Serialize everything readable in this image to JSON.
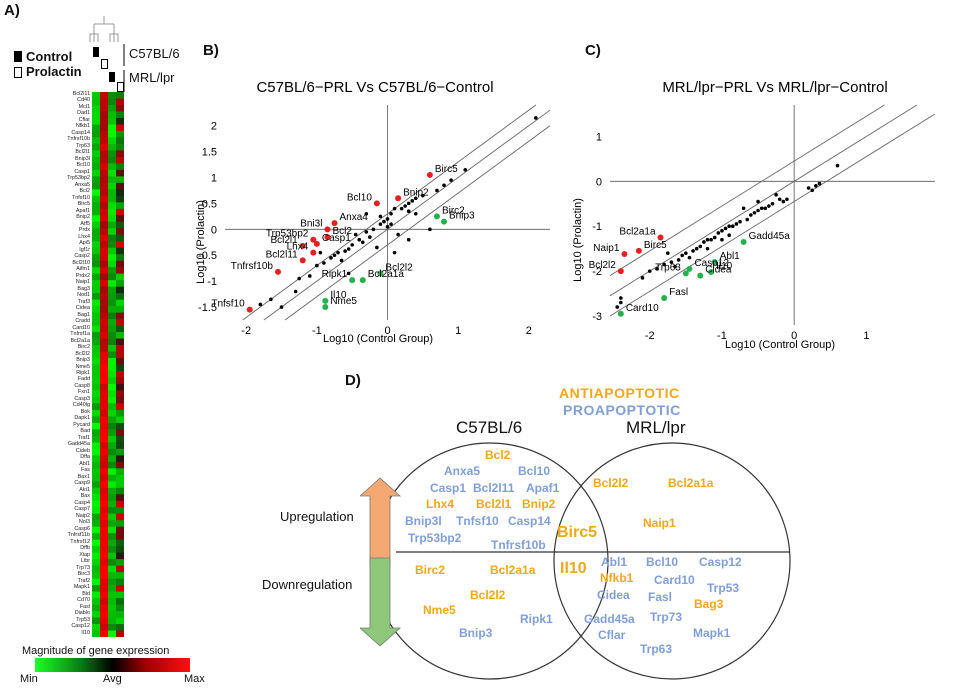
{
  "panel_a": {
    "label": "A)",
    "legend_control": "Control",
    "legend_prolactin": "Prolactin",
    "strain1": "C57BL/6",
    "strain2": "MRL/lpr",
    "genes": [
      "Bcl2l11",
      "Cd40",
      "Mcl1",
      "Dad1",
      "Cflar",
      "Nfkb1",
      "Casp14",
      "Tnfrsf10b",
      "Trp63",
      "Bcl2l1",
      "Bnip3l",
      "Bcl10",
      "Casp1",
      "Trp53bp2",
      "Anxa5",
      "Bcl2",
      "Tnfsf10",
      "Birc5",
      "Apaf1",
      "Bnip2",
      "Atf5",
      "Prdx",
      "Lhx4",
      "Api5",
      "Igf1r",
      "Casp2",
      "Bcl2l10",
      "Aifm1",
      "Prdx2",
      "Naip1",
      "Bag3",
      "Nod1",
      "Traf3",
      "Cidea",
      "Bag1",
      "Cradd",
      "Card10",
      "Tnfrsf1a",
      "Bcl2a1a",
      "Birc2",
      "Bcl2l2",
      "Bnip3",
      "Nme5",
      "Ripk1",
      "Fadd",
      "Casp8",
      "Fxn1",
      "Casp3",
      "Cd40lg",
      "Bok",
      "Dapk1",
      "Pycard",
      "Bad",
      "Traf1",
      "Gadd45a",
      "Cideb",
      "Dffa",
      "Abl1",
      "Fas",
      "Bax1",
      "Casp9",
      "Akt1",
      "Bax",
      "Casp4",
      "Casp7",
      "Naip2",
      "Nol3",
      "Casp6",
      "Tnfrsf11b",
      "Tnfrsf12",
      "Dffb",
      "Xiap",
      "Ltbr",
      "Trp73",
      "Birc3",
      "Traf2",
      "Mapk1",
      "Bid",
      "Cd70",
      "Fasl",
      "Diablo",
      "Trp53",
      "Casp12",
      "Il10"
    ],
    "scale_title": "Magnitude of gene expression",
    "scale_min": "Min",
    "scale_avg": "Avg",
    "scale_max": "Max"
  },
  "panel_b": {
    "label": "B)",
    "chart_data": {
      "type": "scatter",
      "title": "C57BL/6−PRL Vs C57BL/6−Control",
      "xlabel": "Log10 (Control Group)",
      "ylabel": "Log10 (Prolactin)",
      "xlim": [
        -2.3,
        2.3
      ],
      "ylim": [
        -1.75,
        2.4
      ],
      "xticks": [
        -2,
        -1,
        0,
        1,
        2
      ],
      "yticks": [
        -1.5,
        -1,
        -0.5,
        0,
        0.5,
        1,
        1.5,
        2
      ],
      "xtick_labels": [
        "-2",
        "-1",
        "0",
        "1",
        "2"
      ],
      "ytick_labels": [
        "-1.5",
        "-1",
        "-0.5",
        "0",
        "0.5",
        "1",
        "1.5",
        "2"
      ],
      "diagonal_offsets": [
        0.3,
        0,
        -0.3
      ],
      "labeled_points": [
        {
          "gene": "Birc5",
          "x": 0.6,
          "y": 1.05,
          "color": "#e62020",
          "label": "Birc5",
          "ha": "start"
        },
        {
          "gene": "Bnip2",
          "x": 0.15,
          "y": 0.6,
          "color": "#e62020",
          "label": "Bnip2",
          "ha": "start"
        },
        {
          "gene": "Bcl10",
          "x": -0.15,
          "y": 0.5,
          "color": "#e62020",
          "label": "Bcl10",
          "ha": "end"
        },
        {
          "gene": "Anxa4",
          "x": -0.75,
          "y": 0.12,
          "color": "#e62020",
          "label": "Anxa4",
          "ha": "start"
        },
        {
          "gene": "Bni3l",
          "x": -0.85,
          "y": 0.0,
          "color": "#e62020",
          "label": "Bni3l",
          "ha": "end"
        },
        {
          "gene": "Bcl2",
          "x": -0.85,
          "y": -0.15,
          "color": "#e62020",
          "label": "Bcl2",
          "ha": "start"
        },
        {
          "gene": "Trp53bp2",
          "x": -1.05,
          "y": -0.2,
          "color": "#e62020",
          "label": "Trp53bp2",
          "ha": "end"
        },
        {
          "gene": "Casp1",
          "x": -1.0,
          "y": -0.28,
          "color": "#e62020",
          "label": "Casp1",
          "ha": "start"
        },
        {
          "gene": "Bcl2l1",
          "x": -1.2,
          "y": -0.32,
          "color": "#e62020",
          "label": "Bcl2l1",
          "ha": "end"
        },
        {
          "gene": "Lhx4",
          "x": -1.05,
          "y": -0.45,
          "color": "#e62020",
          "label": "Lhx4",
          "ha": "end"
        },
        {
          "gene": "Bcl2l11",
          "x": -1.2,
          "y": -0.6,
          "color": "#e62020",
          "label": "Bcl2l11",
          "ha": "end"
        },
        {
          "gene": "Tnfrsf10b",
          "x": -1.55,
          "y": -0.82,
          "color": "#e62020",
          "label": "Tnfrsf10b",
          "ha": "end"
        },
        {
          "gene": "Tnfsf10",
          "x": -1.95,
          "y": -1.55,
          "color": "#e62020",
          "label": "Tnfsf10",
          "ha": "end"
        },
        {
          "gene": "Birc2",
          "x": 0.7,
          "y": 0.25,
          "color": "#22b14c",
          "label": "Birc2",
          "ha": "start"
        },
        {
          "gene": "Bnip3",
          "x": 0.8,
          "y": 0.15,
          "color": "#22b14c",
          "label": "Bnip3",
          "ha": "start"
        },
        {
          "gene": "Bcl2l2",
          "x": -0.1,
          "y": -0.85,
          "color": "#22b14c",
          "label": "Bcl2l2",
          "ha": "start"
        },
        {
          "gene": "Bcl2a1a",
          "x": -0.35,
          "y": -0.98,
          "color": "#22b14c",
          "label": "Bcl2a1a",
          "ha": "start"
        },
        {
          "gene": "Ripk1",
          "x": -0.5,
          "y": -0.98,
          "color": "#22b14c",
          "label": "Ripk1",
          "ha": "end"
        },
        {
          "gene": "Il10",
          "x": -0.88,
          "y": -1.38,
          "color": "#22b14c",
          "label": "Il10",
          "ha": "start"
        },
        {
          "gene": "Nme5",
          "x": -0.88,
          "y": -1.5,
          "color": "#22b14c",
          "label": "Nme5",
          "ha": "start"
        }
      ],
      "other_points": [
        [
          2.1,
          2.15
        ],
        [
          1.1,
          1.15
        ],
        [
          0.9,
          0.95
        ],
        [
          0.8,
          0.85
        ],
        [
          0.7,
          0.75
        ],
        [
          0.5,
          0.65
        ],
        [
          0.4,
          0.6
        ],
        [
          0.35,
          0.55
        ],
        [
          0.3,
          0.5
        ],
        [
          0.25,
          0.45
        ],
        [
          0.2,
          0.4
        ],
        [
          0.1,
          0.4
        ],
        [
          0.05,
          0.3
        ],
        [
          0.0,
          0.2
        ],
        [
          -0.05,
          0.15
        ],
        [
          -0.1,
          0.1
        ],
        [
          0.0,
          0.05
        ],
        [
          0.05,
          0.1
        ],
        [
          0.3,
          0.35
        ],
        [
          0.4,
          0.3
        ],
        [
          -0.2,
          0.0
        ],
        [
          -0.3,
          -0.05
        ],
        [
          -0.25,
          -0.15
        ],
        [
          -0.4,
          -0.2
        ],
        [
          -0.5,
          -0.3
        ],
        [
          -0.55,
          -0.38
        ],
        [
          -0.6,
          -0.42
        ],
        [
          -0.7,
          -0.45
        ],
        [
          -0.75,
          -0.5
        ],
        [
          -0.8,
          -0.55
        ],
        [
          -0.9,
          -0.65
        ],
        [
          -1.0,
          -0.7
        ],
        [
          -1.1,
          -0.9
        ],
        [
          -0.65,
          -0.6
        ],
        [
          -1.3,
          -1.2
        ],
        [
          -1.5,
          -1.5
        ],
        [
          -1.8,
          -1.45
        ],
        [
          -1.65,
          -1.35
        ],
        [
          -0.55,
          -0.85
        ],
        [
          0.1,
          -0.45
        ],
        [
          0.3,
          -0.2
        ],
        [
          0.6,
          0.0
        ],
        [
          0.15,
          -0.1
        ],
        [
          -0.35,
          -0.25
        ],
        [
          -0.15,
          -0.35
        ],
        [
          -0.45,
          -0.1
        ],
        [
          -0.95,
          -0.45
        ],
        [
          -1.25,
          -0.95
        ],
        [
          -0.3,
          0.3
        ],
        [
          -0.1,
          0.25
        ]
      ]
    }
  },
  "panel_c": {
    "label": "C)",
    "chart_data": {
      "type": "scatter",
      "title": "MRL/lpr−PRL Vs MRL/lpr−Control",
      "xlabel": "Log10 (Control Group)",
      "ylabel": "Log10 (Prolactin)",
      "xlim": [
        -2.55,
        1.95
      ],
      "ylim": [
        -3.2,
        1.7
      ],
      "xticks": [
        -2,
        -1,
        0,
        1
      ],
      "yticks": [
        -3,
        -2,
        -1,
        0,
        1
      ],
      "xtick_labels": [
        "-2",
        "-1",
        "0",
        "1"
      ],
      "ytick_labels": [
        "-3",
        "-2",
        "-1",
        "0",
        "1"
      ],
      "diagonal_offsets": [
        0.45,
        0,
        -0.45
      ],
      "labeled_points": [
        {
          "gene": "Bcl2a1a",
          "x": -1.85,
          "y": -1.25,
          "color": "#e62020",
          "label": "Bcl2a1a",
          "ha": "end"
        },
        {
          "gene": "Birc5",
          "x": -2.15,
          "y": -1.55,
          "color": "#e62020",
          "label": "Birc5",
          "ha": "start"
        },
        {
          "gene": "Naip1",
          "x": -2.35,
          "y": -1.62,
          "color": "#e62020",
          "label": "Naip1",
          "ha": "end"
        },
        {
          "gene": "Bcl2l2",
          "x": -2.4,
          "y": -2.0,
          "color": "#e62020",
          "label": "Bcl2l2",
          "ha": "end"
        },
        {
          "gene": "Gadd45a",
          "x": -0.7,
          "y": -1.35,
          "color": "#22b14c",
          "label": "Gadd45a",
          "ha": "start"
        },
        {
          "gene": "Abl1",
          "x": -1.1,
          "y": -1.8,
          "color": "#22b14c",
          "label": "Abl1",
          "ha": "start"
        },
        {
          "gene": "Casp12",
          "x": -1.45,
          "y": -1.95,
          "color": "#22b14c",
          "label": "Casp12",
          "ha": "start"
        },
        {
          "gene": "Il10",
          "x": -1.15,
          "y": -2.02,
          "color": "#22b14c",
          "label": "Il10",
          "ha": "start"
        },
        {
          "gene": "Cidea",
          "x": -1.3,
          "y": -2.1,
          "color": "#22b14c",
          "label": "Cidea",
          "ha": "start"
        },
        {
          "gene": "Trp63",
          "x": -1.5,
          "y": -2.05,
          "color": "#22b14c",
          "label": "Trp63",
          "ha": "end"
        },
        {
          "gene": "Fasl",
          "x": -1.8,
          "y": -2.6,
          "color": "#22b14c",
          "label": "Fasl",
          "ha": "start"
        },
        {
          "gene": "Card10",
          "x": -2.4,
          "y": -2.95,
          "color": "#22b14c",
          "label": "Card10",
          "ha": "start"
        }
      ],
      "other_points": [
        [
          0.6,
          0.35
        ],
        [
          0.35,
          -0.05
        ],
        [
          0.3,
          -0.1
        ],
        [
          0.25,
          -0.2
        ],
        [
          0.2,
          -0.15
        ],
        [
          -0.1,
          -0.4
        ],
        [
          -0.15,
          -0.45
        ],
        [
          -0.2,
          -0.4
        ],
        [
          -0.3,
          -0.5
        ],
        [
          -0.35,
          -0.55
        ],
        [
          -0.4,
          -0.6
        ],
        [
          -0.45,
          -0.6
        ],
        [
          -0.5,
          -0.65
        ],
        [
          -0.55,
          -0.7
        ],
        [
          -0.6,
          -0.75
        ],
        [
          -0.65,
          -0.85
        ],
        [
          -0.75,
          -0.9
        ],
        [
          -0.8,
          -0.95
        ],
        [
          -0.85,
          -1.0
        ],
        [
          -0.9,
          -1.0
        ],
        [
          -0.95,
          -1.05
        ],
        [
          -1.0,
          -1.1
        ],
        [
          -1.05,
          -1.15
        ],
        [
          -1.1,
          -1.25
        ],
        [
          -1.15,
          -1.3
        ],
        [
          -1.2,
          -1.3
        ],
        [
          -1.25,
          -1.35
        ],
        [
          -1.3,
          -1.45
        ],
        [
          -1.35,
          -1.5
        ],
        [
          -1.4,
          -1.55
        ],
        [
          -1.5,
          -1.6
        ],
        [
          -1.55,
          -1.65
        ],
        [
          -1.6,
          -1.75
        ],
        [
          -1.7,
          -1.8
        ],
        [
          -1.8,
          -1.85
        ],
        [
          -1.9,
          -1.95
        ],
        [
          -2.0,
          -2.0
        ],
        [
          -2.1,
          -2.15
        ],
        [
          -1.2,
          -1.5
        ],
        [
          -1.0,
          -1.3
        ],
        [
          -0.9,
          -1.2
        ],
        [
          -1.45,
          -1.7
        ],
        [
          -1.65,
          -1.9
        ],
        [
          -2.4,
          -2.6
        ],
        [
          -2.4,
          -2.7
        ],
        [
          -2.45,
          -2.8
        ],
        [
          -0.7,
          -0.6
        ],
        [
          -0.5,
          -0.45
        ],
        [
          -0.25,
          -0.3
        ],
        [
          -1.75,
          -1.6
        ]
      ]
    }
  },
  "panel_d": {
    "label": "D)",
    "legend_anti": "ANTIAPOPTOTIC",
    "legend_pro": "PROAPOPTOTIC",
    "set_left": "C57BL/6",
    "set_right": "MRL/lpr",
    "upregulation": "Upregulation",
    "downregulation": "Downregulation",
    "intersection_up": "Birc5",
    "intersection_down": "Il10",
    "left_up": [
      {
        "text": "Bcl2",
        "type": "anti"
      },
      {
        "text": "Anxa5",
        "type": "pro"
      },
      {
        "text": "Bcl10",
        "type": "pro"
      },
      {
        "text": "Casp1",
        "type": "pro"
      },
      {
        "text": "Bcl2l11",
        "type": "pro"
      },
      {
        "text": "Apaf1",
        "type": "pro"
      },
      {
        "text": "Lhx4",
        "type": "anti"
      },
      {
        "text": "Bcl2l1",
        "type": "anti"
      },
      {
        "text": "Bnip2",
        "type": "anti"
      },
      {
        "text": "Bnip3l",
        "type": "pro"
      },
      {
        "text": "Tnfsf10",
        "type": "pro"
      },
      {
        "text": "Casp14",
        "type": "pro"
      },
      {
        "text": "Trp53bp2",
        "type": "pro"
      },
      {
        "text": "Tnfrsf10b",
        "type": "pro"
      }
    ],
    "left_down": [
      {
        "text": "Birc2",
        "type": "anti"
      },
      {
        "text": "Bcl2a1a",
        "type": "anti"
      },
      {
        "text": "Bcl2l2",
        "type": "anti"
      },
      {
        "text": "Nme5",
        "type": "anti"
      },
      {
        "text": "Ripk1",
        "type": "pro"
      },
      {
        "text": "Bnip3",
        "type": "pro"
      }
    ],
    "right_up": [
      {
        "text": "Bcl2l2",
        "type": "anti"
      },
      {
        "text": "Bcl2a1a",
        "type": "anti"
      },
      {
        "text": "Naip1",
        "type": "anti"
      }
    ],
    "right_down": [
      {
        "text": "Abl1",
        "type": "pro"
      },
      {
        "text": "Bcl10",
        "type": "pro"
      },
      {
        "text": "Casp12",
        "type": "pro"
      },
      {
        "text": "Nfkb1",
        "type": "anti"
      },
      {
        "text": "Card10",
        "type": "pro"
      },
      {
        "text": "Trp53",
        "type": "pro"
      },
      {
        "text": "Cidea",
        "type": "pro"
      },
      {
        "text": "Fasl",
        "type": "pro"
      },
      {
        "text": "Bag3",
        "type": "anti"
      },
      {
        "text": "Gadd45a",
        "type": "pro"
      },
      {
        "text": "Trp73",
        "type": "pro"
      },
      {
        "text": "Cflar",
        "type": "pro"
      },
      {
        "text": "Mapk1",
        "type": "pro"
      },
      {
        "text": "Trp63",
        "type": "pro"
      }
    ],
    "colors": {
      "anti": "#f0a818",
      "pro": "#7f9fd6",
      "arrow_up": "#f6a872",
      "arrow_down": "#8ec87a"
    }
  }
}
